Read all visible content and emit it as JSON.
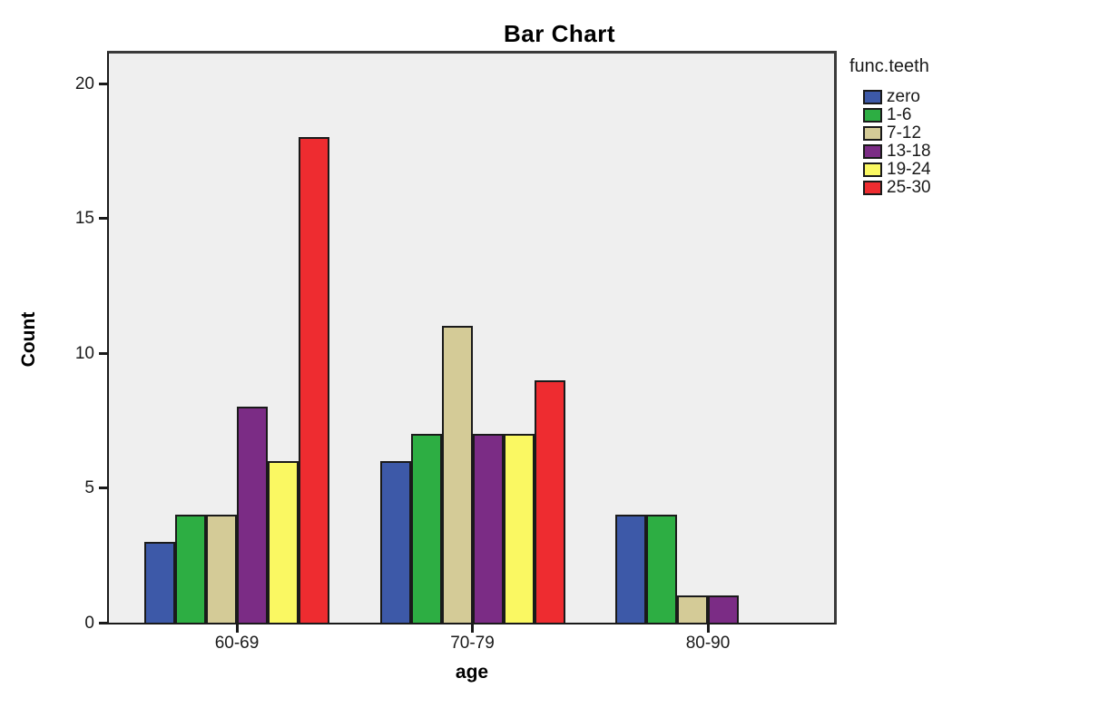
{
  "chart_data": {
    "type": "bar",
    "title": "Bar Chart",
    "xlabel": "age",
    "ylabel": "Count",
    "legend_title": "func.teeth",
    "legend_position": "top-right",
    "grid": false,
    "plot_background": "#efefef",
    "bar_outline_color": "#1a1a1a",
    "ylim": [
      0,
      20
    ],
    "yticks": [
      0,
      5,
      10,
      15,
      20
    ],
    "categories": [
      "60-69",
      "70-79",
      "80-90"
    ],
    "series": [
      {
        "name": "zero",
        "color": "#3d59a8",
        "values": [
          3,
          6,
          4
        ]
      },
      {
        "name": "1-6",
        "color": "#2dae43",
        "values": [
          4,
          7,
          4
        ]
      },
      {
        "name": "7-12",
        "color": "#d4cb97",
        "values": [
          4,
          11,
          1
        ]
      },
      {
        "name": "13-18",
        "color": "#7b2c85",
        "values": [
          8,
          7,
          1
        ]
      },
      {
        "name": "19-24",
        "color": "#faf862",
        "values": [
          6,
          7,
          0
        ]
      },
      {
        "name": "25-30",
        "color": "#ee2c30",
        "values": [
          18,
          9,
          0
        ]
      }
    ]
  }
}
